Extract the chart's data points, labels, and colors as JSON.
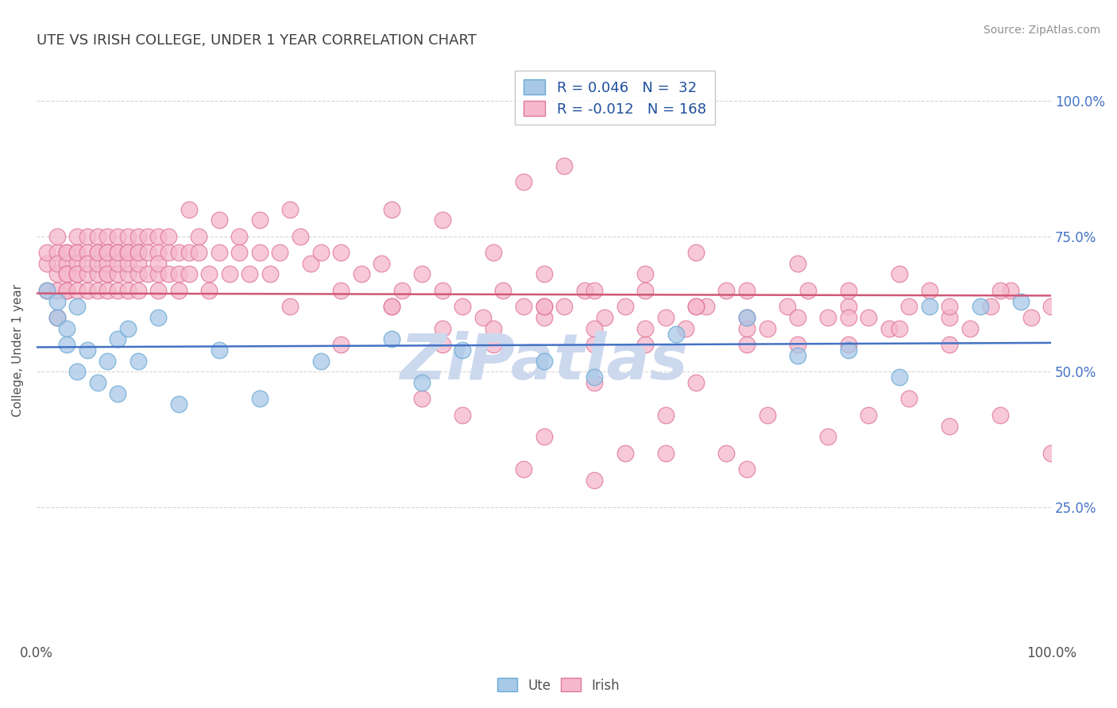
{
  "title": "UTE VS IRISH COLLEGE, UNDER 1 YEAR CORRELATION CHART",
  "source": "Source: ZipAtlas.com",
  "ylabel": "College, Under 1 year",
  "xlim": [
    0.0,
    1.0
  ],
  "ylim": [
    0.0,
    1.08
  ],
  "ute_color_face": "#a8c8e8",
  "ute_color_edge": "#6aaad4",
  "irish_color_face": "#f5b8cc",
  "irish_color_edge": "#e07898",
  "trend_ute_color": "#4472c4",
  "trend_irish_color": "#d05878",
  "background_color": "#ffffff",
  "grid_color": "#cccccc",
  "title_color": "#404040",
  "source_color": "#909090",
  "watermark_color": "#ccd8ee",
  "r_ute": 0.046,
  "n_ute": 32,
  "r_irish": -0.012,
  "n_irish": 168,
  "ute_x": [
    0.01,
    0.02,
    0.02,
    0.03,
    0.03,
    0.04,
    0.04,
    0.05,
    0.06,
    0.07,
    0.08,
    0.08,
    0.09,
    0.1,
    0.12,
    0.14,
    0.18,
    0.22,
    0.28,
    0.35,
    0.38,
    0.42,
    0.5,
    0.55,
    0.63,
    0.7,
    0.75,
    0.8,
    0.85,
    0.88,
    0.93,
    0.97
  ],
  "ute_y": [
    0.65,
    0.6,
    0.63,
    0.58,
    0.55,
    0.62,
    0.5,
    0.54,
    0.48,
    0.52,
    0.56,
    0.46,
    0.58,
    0.52,
    0.6,
    0.44,
    0.54,
    0.45,
    0.52,
    0.56,
    0.48,
    0.54,
    0.52,
    0.49,
    0.57,
    0.6,
    0.53,
    0.54,
    0.49,
    0.62,
    0.62,
    0.63
  ],
  "irish_x": [
    0.01,
    0.01,
    0.01,
    0.02,
    0.02,
    0.02,
    0.02,
    0.02,
    0.02,
    0.03,
    0.03,
    0.03,
    0.03,
    0.03,
    0.03,
    0.03,
    0.04,
    0.04,
    0.04,
    0.04,
    0.04,
    0.04,
    0.04,
    0.05,
    0.05,
    0.05,
    0.05,
    0.05,
    0.06,
    0.06,
    0.06,
    0.06,
    0.06,
    0.06,
    0.07,
    0.07,
    0.07,
    0.07,
    0.07,
    0.07,
    0.07,
    0.08,
    0.08,
    0.08,
    0.08,
    0.08,
    0.08,
    0.09,
    0.09,
    0.09,
    0.09,
    0.09,
    0.09,
    0.1,
    0.1,
    0.1,
    0.1,
    0.1,
    0.1,
    0.11,
    0.11,
    0.11,
    0.12,
    0.12,
    0.12,
    0.12,
    0.12,
    0.13,
    0.13,
    0.13,
    0.14,
    0.14,
    0.14,
    0.15,
    0.15,
    0.15,
    0.16,
    0.16,
    0.17,
    0.17,
    0.18,
    0.18,
    0.19,
    0.2,
    0.2,
    0.21,
    0.22,
    0.22,
    0.23,
    0.24,
    0.25,
    0.26,
    0.27,
    0.28,
    0.3,
    0.32,
    0.34,
    0.36,
    0.38,
    0.4,
    0.42,
    0.44,
    0.46,
    0.48,
    0.5,
    0.52,
    0.54,
    0.56,
    0.58,
    0.6,
    0.62,
    0.64,
    0.66,
    0.68,
    0.7,
    0.72,
    0.74,
    0.76,
    0.78,
    0.8,
    0.82,
    0.84,
    0.86,
    0.88,
    0.9,
    0.92,
    0.94,
    0.96,
    0.98,
    1.0,
    0.35,
    0.4,
    0.45,
    0.5,
    0.55,
    0.6,
    0.65,
    0.7,
    0.75,
    0.8,
    0.85,
    0.9,
    0.95,
    0.3,
    0.35,
    0.4,
    0.45,
    0.5,
    0.55,
    0.6,
    0.65,
    0.7,
    0.75,
    0.8,
    0.85,
    0.9,
    0.25,
    0.3,
    0.35,
    0.4,
    0.45,
    0.5,
    0.55,
    0.6,
    0.65,
    0.7,
    0.75,
    0.8
  ],
  "irish_y": [
    0.7,
    0.65,
    0.72,
    0.68,
    0.72,
    0.65,
    0.7,
    0.75,
    0.6,
    0.72,
    0.65,
    0.7,
    0.68,
    0.72,
    0.65,
    0.68,
    0.72,
    0.68,
    0.75,
    0.65,
    0.7,
    0.72,
    0.68,
    0.75,
    0.72,
    0.68,
    0.65,
    0.7,
    0.75,
    0.72,
    0.68,
    0.65,
    0.7,
    0.72,
    0.75,
    0.72,
    0.68,
    0.65,
    0.7,
    0.72,
    0.68,
    0.75,
    0.72,
    0.68,
    0.65,
    0.7,
    0.72,
    0.75,
    0.72,
    0.68,
    0.65,
    0.7,
    0.72,
    0.75,
    0.72,
    0.68,
    0.65,
    0.7,
    0.72,
    0.75,
    0.72,
    0.68,
    0.75,
    0.72,
    0.68,
    0.65,
    0.7,
    0.72,
    0.68,
    0.75,
    0.72,
    0.68,
    0.65,
    0.8,
    0.72,
    0.68,
    0.75,
    0.72,
    0.68,
    0.65,
    0.78,
    0.72,
    0.68,
    0.75,
    0.72,
    0.68,
    0.78,
    0.72,
    0.68,
    0.72,
    0.8,
    0.75,
    0.7,
    0.72,
    0.72,
    0.68,
    0.7,
    0.65,
    0.68,
    0.65,
    0.62,
    0.6,
    0.65,
    0.62,
    0.6,
    0.62,
    0.65,
    0.6,
    0.62,
    0.65,
    0.6,
    0.58,
    0.62,
    0.65,
    0.6,
    0.58,
    0.62,
    0.65,
    0.6,
    0.62,
    0.6,
    0.58,
    0.62,
    0.65,
    0.6,
    0.58,
    0.62,
    0.65,
    0.6,
    0.62,
    0.8,
    0.78,
    0.72,
    0.68,
    0.65,
    0.68,
    0.72,
    0.65,
    0.7,
    0.65,
    0.68,
    0.62,
    0.65,
    0.65,
    0.62,
    0.58,
    0.55,
    0.62,
    0.58,
    0.55,
    0.62,
    0.58,
    0.55,
    0.6,
    0.58,
    0.55,
    0.62,
    0.55,
    0.62,
    0.55,
    0.58,
    0.62,
    0.55,
    0.58,
    0.62,
    0.55,
    0.6,
    0.55
  ],
  "irish_y_outliers_x": [
    0.38,
    0.42,
    0.5,
    0.55,
    0.58,
    0.62,
    0.65,
    0.68,
    0.72,
    0.78,
    0.82,
    0.86,
    0.9,
    0.95,
    1.0,
    0.48,
    0.55,
    0.62,
    0.7,
    0.48,
    0.52
  ],
  "irish_y_outliers_y": [
    0.45,
    0.42,
    0.38,
    0.48,
    0.35,
    0.42,
    0.48,
    0.35,
    0.42,
    0.38,
    0.42,
    0.45,
    0.4,
    0.42,
    0.35,
    0.32,
    0.3,
    0.35,
    0.32,
    0.85,
    0.88
  ]
}
